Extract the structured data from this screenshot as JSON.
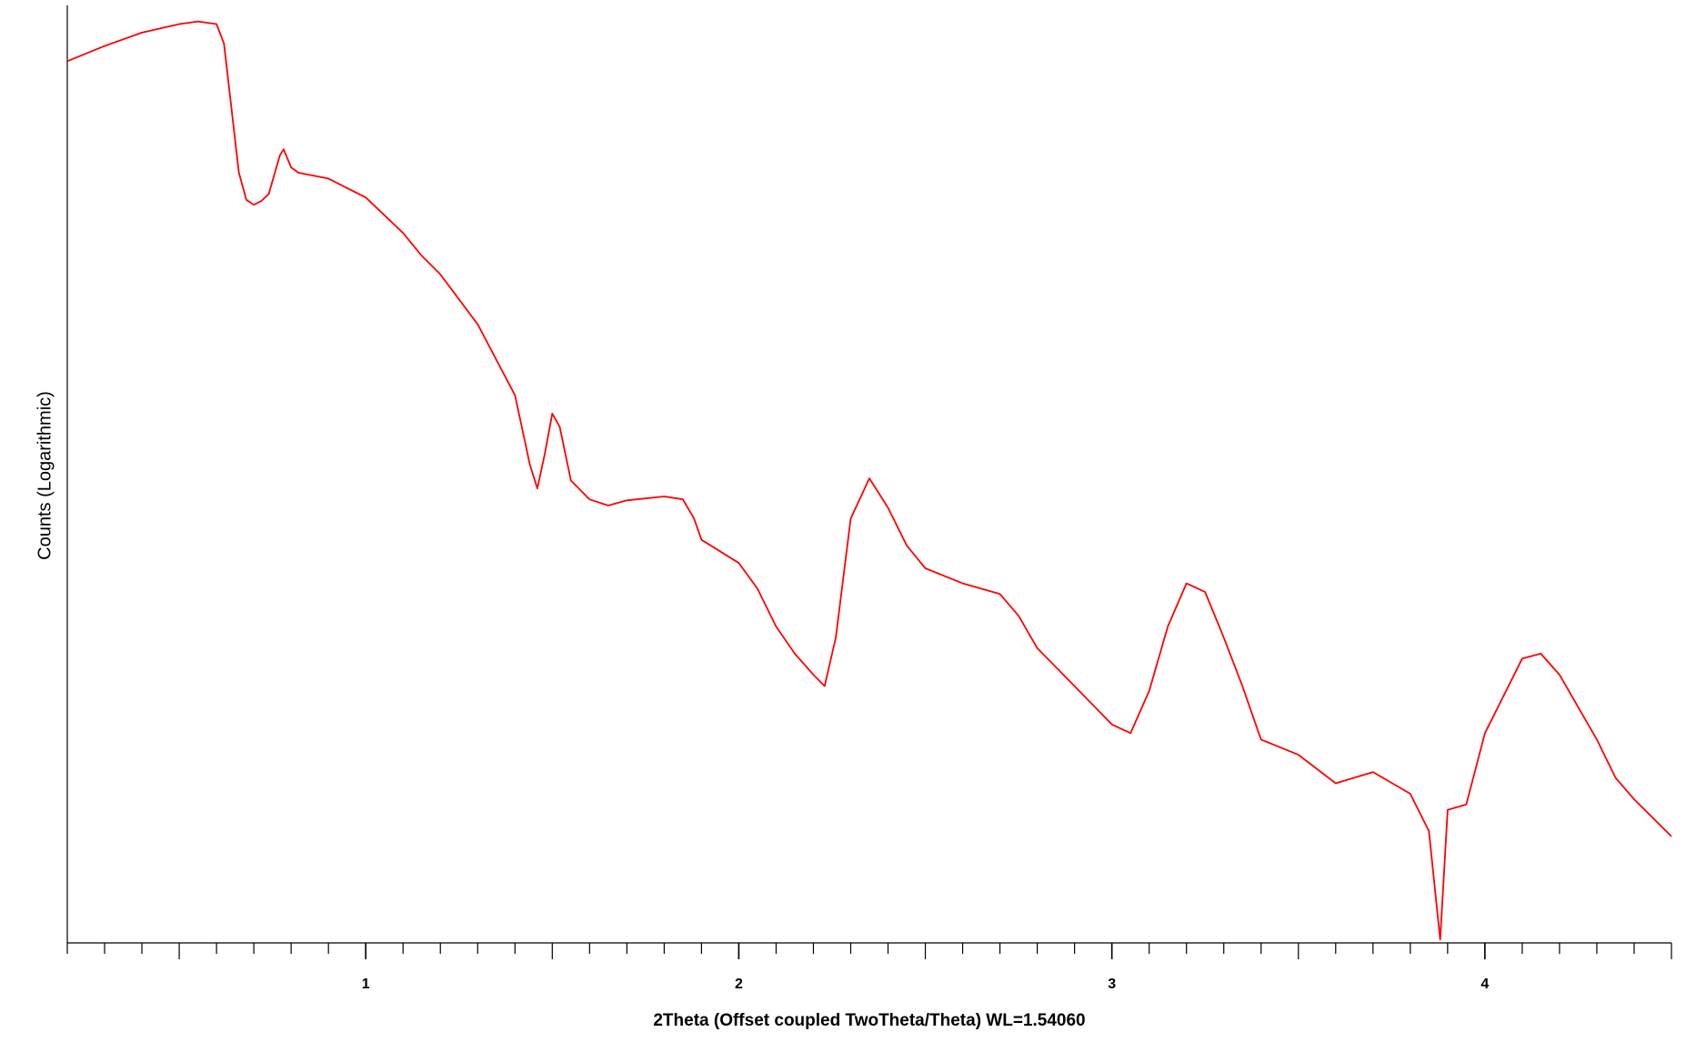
{
  "chart_data": {
    "type": "line",
    "xlabel": "2Theta (Offset coupled TwoTheta/Theta) WL=1.54060",
    "ylabel": "Counts (Logarithmic)",
    "xlim": [
      0.2,
      4.5
    ],
    "xticks": [
      1,
      2,
      3,
      4
    ],
    "xminor_ticks": [
      0.2,
      0.3,
      0.4,
      0.5,
      0.6,
      0.7,
      0.8,
      0.9,
      1.0,
      1.1,
      1.2,
      1.3,
      1.4,
      1.5,
      1.6,
      1.7,
      1.8,
      1.9,
      2.0,
      2.1,
      2.2,
      2.3,
      2.4,
      2.5,
      2.6,
      2.7,
      2.8,
      2.9,
      3.0,
      3.1,
      3.2,
      3.3,
      3.4,
      3.5,
      3.6,
      3.7,
      3.8,
      3.9,
      4.0,
      4.1,
      4.2,
      4.3,
      4.4,
      4.5
    ],
    "ylim": [
      1,
      1000000
    ],
    "yscale": "log",
    "series": [
      {
        "color": "#ff0000",
        "x": [
          0.2,
          0.3,
          0.4,
          0.5,
          0.55,
          0.6,
          0.62,
          0.64,
          0.66,
          0.68,
          0.7,
          0.72,
          0.74,
          0.77,
          0.78,
          0.8,
          0.82,
          0.9,
          1.0,
          1.1,
          1.15,
          1.2,
          1.3,
          1.4,
          1.44,
          1.46,
          1.48,
          1.5,
          1.52,
          1.55,
          1.6,
          1.65,
          1.7,
          1.8,
          1.85,
          1.88,
          1.9,
          2.0,
          2.05,
          2.1,
          2.15,
          2.2,
          2.23,
          2.26,
          2.3,
          2.35,
          2.4,
          2.45,
          2.5,
          2.6,
          2.7,
          2.75,
          2.8,
          2.9,
          3.0,
          3.05,
          3.1,
          3.15,
          3.2,
          3.25,
          3.3,
          3.35,
          3.4,
          3.5,
          3.6,
          3.7,
          3.8,
          3.85,
          3.88,
          3.9,
          3.95,
          4.0,
          4.1,
          4.15,
          4.2,
          4.3,
          4.35,
          4.4,
          4.5
        ],
        "values": [
          440000,
          550000,
          670000,
          760000,
          790000,
          760000,
          570000,
          220000,
          85000,
          57000,
          53000,
          56000,
          62000,
          110000,
          120000,
          92000,
          85000,
          78000,
          59000,
          35000,
          25000,
          19000,
          9100,
          3200,
          1150,
          810,
          1350,
          2440,
          2010,
          910,
          690,
          630,
          680,
          720,
          690,
          520,
          380,
          270,
          185,
          106,
          71,
          52,
          44,
          90,
          520,
          940,
          610,
          350,
          250,
          200,
          171,
          124,
          77,
          44,
          25,
          22,
          41,
          106,
          200,
          176,
          90,
          44,
          20,
          16,
          10.5,
          12.4,
          9,
          5.2,
          1.05,
          7.1,
          7.7,
          22,
          66,
          71,
          52,
          20,
          11.4,
          8.3,
          4.8
        ]
      }
    ]
  }
}
